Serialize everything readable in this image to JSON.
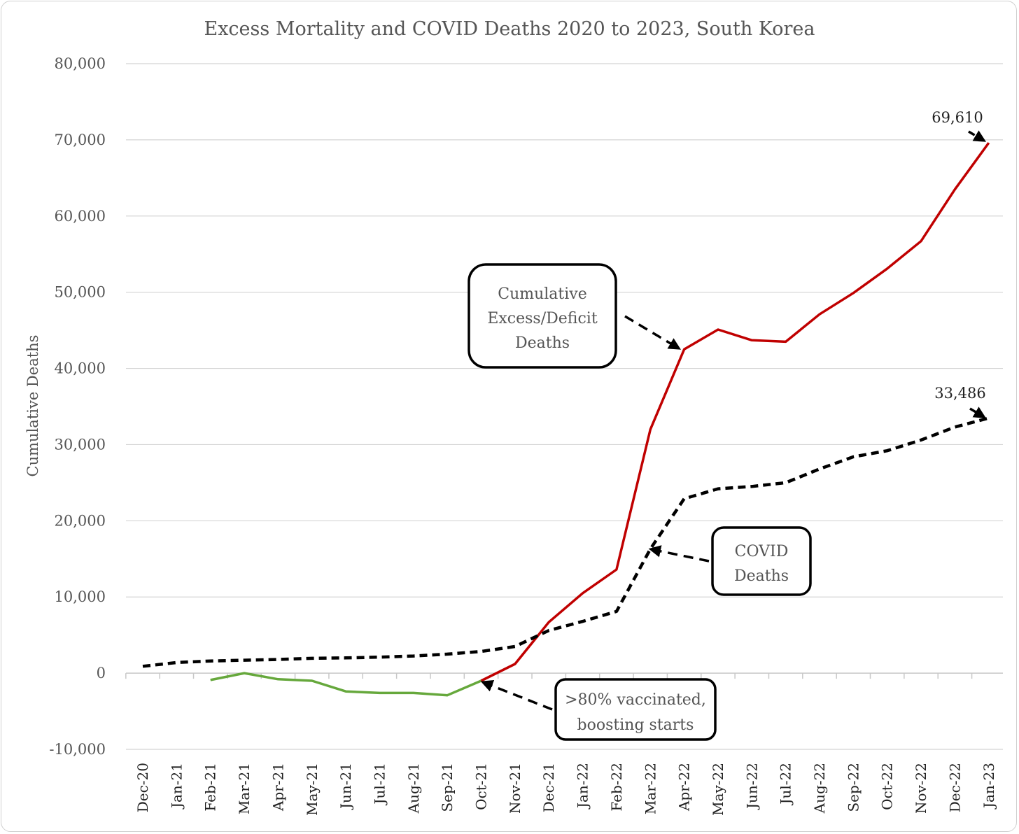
{
  "chart_data": {
    "type": "line",
    "title": "Excess Mortality and COVID Deaths 2020 to 2023, South Korea",
    "xlabel": "",
    "ylabel": "Cumulative Deaths",
    "ylim": [
      -10000,
      80000
    ],
    "yticks": [
      -10000,
      0,
      10000,
      20000,
      30000,
      40000,
      50000,
      60000,
      70000,
      80000
    ],
    "ytick_labels": [
      "-10,000",
      "0",
      "10,000",
      "20,000",
      "30,000",
      "40,000",
      "50,000",
      "60,000",
      "70,000",
      "80,000"
    ],
    "grid": true,
    "categories": [
      "Dec-20",
      "Jan-21",
      "Feb-21",
      "Mar-21",
      "Apr-21",
      "May-21",
      "Jun-21",
      "Jul-21",
      "Aug-21",
      "Sep-21",
      "Oct-21",
      "Nov-21",
      "Dec-21",
      "Jan-22",
      "Feb-22",
      "Mar-22",
      "Apr-22",
      "May-22",
      "Jun-22",
      "Jul-22",
      "Aug-22",
      "Sep-22",
      "Oct-22",
      "Nov-22",
      "Dec-22",
      "Jan-23"
    ],
    "series": [
      {
        "name": "Cumulative Excess/Deficit Deaths (pre-boosting)",
        "color": "#66a83c",
        "style": "solid",
        "values": [
          null,
          null,
          -900,
          0,
          -800,
          -1000,
          -2400,
          -2600,
          -2600,
          -2900,
          -1000,
          null,
          null,
          null,
          null,
          null,
          null,
          null,
          null,
          null,
          null,
          null,
          null,
          null,
          null,
          null
        ]
      },
      {
        "name": "Cumulative Excess/Deficit Deaths",
        "color": "#c00000",
        "style": "solid",
        "values": [
          null,
          null,
          null,
          null,
          null,
          null,
          null,
          null,
          null,
          null,
          -1000,
          1200,
          6700,
          10500,
          13600,
          32000,
          42500,
          45100,
          43700,
          43500,
          47100,
          49900,
          53100,
          56700,
          63500,
          69610
        ]
      },
      {
        "name": "COVID Deaths",
        "color": "#000000",
        "style": "dashed",
        "values": [
          900,
          1400,
          1600,
          1700,
          1800,
          1950,
          2000,
          2100,
          2250,
          2500,
          2850,
          3500,
          5600,
          6800,
          8100,
          16300,
          22900,
          24200,
          24500,
          25000,
          26800,
          28400,
          29200,
          30600,
          32300,
          33486
        ]
      }
    ],
    "annotations": {
      "excess_box": [
        "Cumulative",
        "Excess/Deficit",
        "Deaths"
      ],
      "covid_box": [
        "COVID",
        "Deaths"
      ],
      "vaccine_box": [
        ">80% vaccinated,",
        "boosting starts"
      ],
      "excess_end_label": "69,610",
      "covid_end_label": "33,486"
    }
  }
}
